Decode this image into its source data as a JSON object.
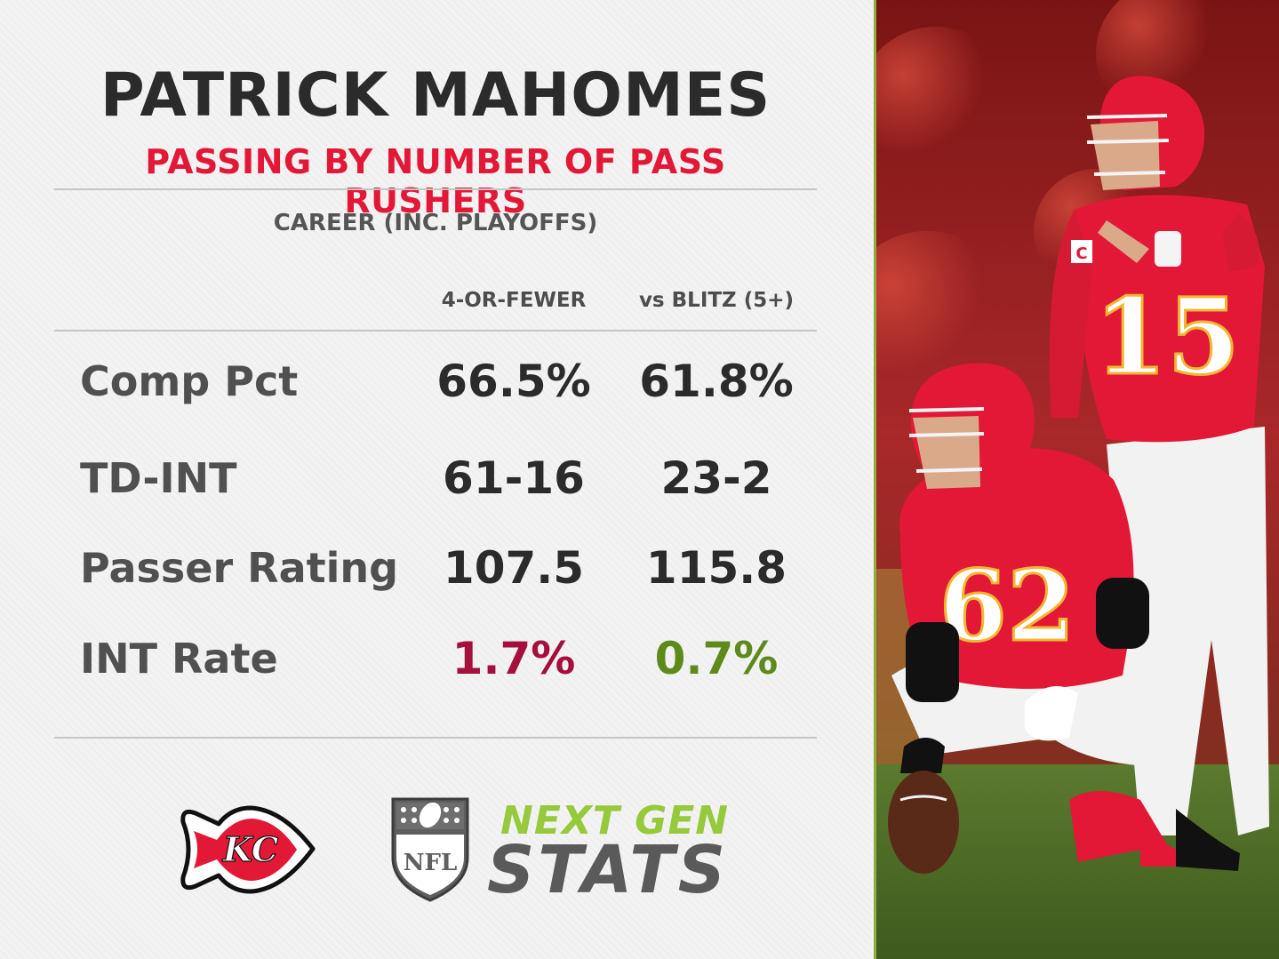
{
  "header": {
    "title": "PATRICK MAHOMES",
    "subtitle": "PASSING BY NUMBER OF PASS RUSHERS"
  },
  "table": {
    "caption": "CAREER (INC. PLAYOFFS)",
    "columns": [
      "4-OR-FEWER",
      "vs BLITZ (5+)"
    ],
    "rows": [
      {
        "label": "Comp Pct",
        "values": [
          "66.5%",
          "61.8%"
        ]
      },
      {
        "label": "TD-INT",
        "values": [
          "61-16",
          "23-2"
        ]
      },
      {
        "label": "Passer Rating",
        "values": [
          "107.5",
          "115.8"
        ]
      },
      {
        "label": "INT Rate",
        "values": [
          "1.7%",
          "0.7%"
        ]
      }
    ]
  },
  "logos": {
    "team_logo": "KC",
    "nfl_logo": "NFL",
    "ngs_top": "NEXT GEN",
    "ngs_bottom": "STATS"
  },
  "photo": {
    "jersey_numbers": [
      "15",
      "62"
    ],
    "captain_patch": "C"
  },
  "colors": {
    "title": "#2b2b2b",
    "subtitle": "#e31837",
    "int_rate_4_or_fewer": "#a50f3c",
    "int_rate_blitz": "#5d8a1b",
    "ngs_green": "#97c93c",
    "ngs_gray": "#5a5a5a",
    "chiefs_red": "#e31837"
  }
}
